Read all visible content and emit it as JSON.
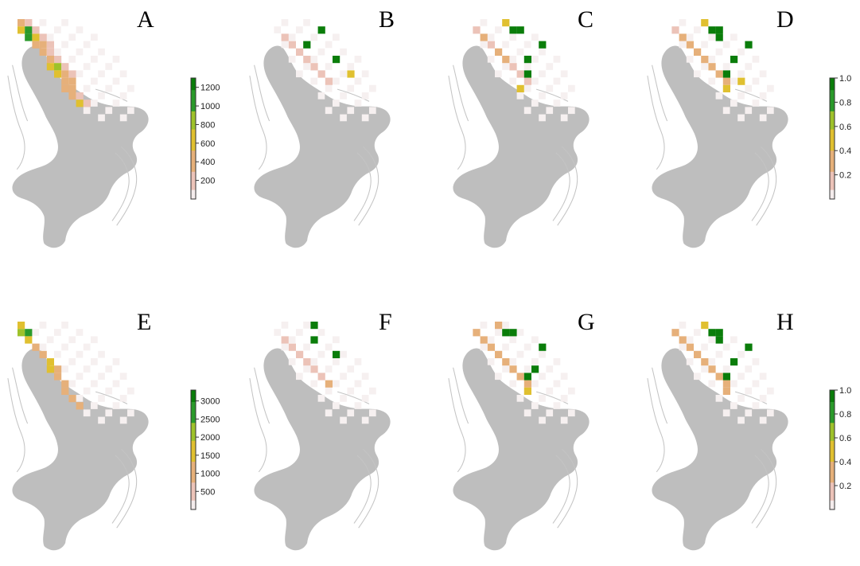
{
  "colors": {
    "land": "#bebebe",
    "contour": "#c4c4c4",
    "ramp": [
      "#f4ecec",
      "#ecc3b8",
      "#e6b07a",
      "#e0c030",
      "#9ec22a",
      "#2a9a2a",
      "#0a7d0a"
    ]
  },
  "legends": [
    {
      "id": "legend-abundance-top",
      "kind": "abundance",
      "ticks": [
        "200",
        "400",
        "600",
        "800",
        "1000",
        "1200"
      ],
      "max": 1300
    },
    {
      "id": "legend-probability-top",
      "kind": "probability",
      "ticks": [
        "0.2",
        "0.4",
        "0.6",
        "0.8",
        "1.0"
      ],
      "max": 1.0
    },
    {
      "id": "legend-abundance-bottom",
      "kind": "abundance",
      "ticks": [
        "500",
        "1000",
        "1500",
        "2000",
        "2500",
        "3000"
      ],
      "max": 3300
    },
    {
      "id": "legend-probability-bottom",
      "kind": "probability",
      "ticks": [
        "0.2",
        "0.4",
        "0.6",
        "0.8",
        "1.0"
      ],
      "max": 1.0
    }
  ],
  "panels": [
    {
      "label": "A",
      "kind": "abundance",
      "grid": [
        [
          0,
          0,
          0.4,
          0
        ],
        [
          0,
          1,
          0.1
        ],
        [
          1,
          0,
          0.5
        ],
        [
          1,
          1,
          0.9
        ],
        [
          1,
          2,
          0.1
        ],
        [
          2,
          1,
          0.75
        ],
        [
          2,
          2,
          0.5
        ],
        [
          2,
          3,
          0.1
        ],
        [
          3,
          2,
          0.4
        ],
        [
          3,
          3,
          0.3
        ],
        [
          3,
          4,
          0.1
        ],
        [
          4,
          3,
          0.3
        ],
        [
          4,
          4,
          0.2
        ],
        [
          5,
          4,
          0.4
        ],
        [
          5,
          5,
          0.2
        ],
        [
          6,
          4,
          0.55
        ],
        [
          6,
          5,
          0.6
        ],
        [
          6,
          6,
          0.2
        ],
        [
          7,
          5,
          0.5
        ],
        [
          7,
          6,
          0.4
        ],
        [
          7,
          7,
          0.2
        ],
        [
          8,
          6,
          0.4
        ],
        [
          8,
          7,
          0.3
        ],
        [
          9,
          6,
          0.3
        ],
        [
          9,
          7,
          0.35
        ],
        [
          10,
          7,
          0.4
        ],
        [
          10,
          8,
          0.2
        ],
        [
          11,
          8,
          0.45
        ],
        [
          11,
          9,
          0.2
        ]
      ]
    },
    {
      "label": "B",
      "kind": "probability",
      "grid": [
        [
          2,
          3,
          0.1
        ],
        [
          3,
          4,
          0.12
        ],
        [
          4,
          5,
          0.15
        ],
        [
          5,
          6,
          0.2
        ],
        [
          6,
          7,
          0.15
        ],
        [
          7,
          8,
          0.12
        ],
        [
          8,
          9,
          0.1
        ],
        [
          3,
          6,
          1.0
        ],
        [
          1,
          8,
          1.0
        ],
        [
          5,
          10,
          1.0
        ],
        [
          7,
          12,
          0.45
        ]
      ]
    },
    {
      "label": "C",
      "kind": "probability",
      "grid": [
        [
          1,
          2,
          0.15
        ],
        [
          2,
          3,
          0.25
        ],
        [
          3,
          4,
          0.2
        ],
        [
          4,
          5,
          0.25
        ],
        [
          5,
          6,
          0.3
        ],
        [
          6,
          7,
          0.2
        ],
        [
          7,
          8,
          0.2
        ],
        [
          8,
          9,
          0.2
        ],
        [
          0,
          6,
          0.5
        ],
        [
          1,
          7,
          1.0
        ],
        [
          1,
          8,
          1.0
        ],
        [
          3,
          11,
          1.0
        ],
        [
          5,
          9,
          1.0
        ],
        [
          7,
          9,
          1.0
        ],
        [
          9,
          8,
          0.45
        ]
      ]
    },
    {
      "label": "D",
      "kind": "probability",
      "grid": [
        [
          1,
          2,
          0.2
        ],
        [
          2,
          3,
          0.3
        ],
        [
          3,
          4,
          0.35
        ],
        [
          4,
          5,
          0.4
        ],
        [
          5,
          6,
          0.35
        ],
        [
          6,
          7,
          0.3
        ],
        [
          7,
          8,
          0.25
        ],
        [
          8,
          9,
          0.25
        ],
        [
          0,
          6,
          0.5
        ],
        [
          1,
          7,
          1.0
        ],
        [
          1,
          8,
          1.0
        ],
        [
          2,
          8,
          1.0
        ],
        [
          3,
          12,
          1.0
        ],
        [
          5,
          10,
          1.0
        ],
        [
          7,
          9,
          1.0
        ],
        [
          8,
          11,
          0.45
        ],
        [
          9,
          9,
          0.45
        ]
      ]
    },
    {
      "label": "E",
      "kind": "abundance",
      "grid": [
        [
          0,
          0,
          0.45
        ],
        [
          1,
          0,
          0.6
        ],
        [
          1,
          1,
          0.9
        ],
        [
          2,
          1,
          0.5
        ],
        [
          3,
          2,
          0.4
        ],
        [
          4,
          3,
          0.3
        ],
        [
          5,
          4,
          0.5
        ],
        [
          6,
          4,
          0.55
        ],
        [
          6,
          5,
          0.4
        ],
        [
          7,
          5,
          0.35
        ],
        [
          8,
          6,
          0.3
        ],
        [
          9,
          6,
          0.25
        ],
        [
          10,
          7,
          0.3
        ],
        [
          11,
          8,
          0.35
        ]
      ]
    },
    {
      "label": "F",
      "kind": "probability",
      "grid": [
        [
          2,
          3,
          0.1
        ],
        [
          3,
          4,
          0.12
        ],
        [
          4,
          5,
          0.12
        ],
        [
          5,
          6,
          0.15
        ],
        [
          6,
          7,
          0.15
        ],
        [
          7,
          8,
          0.1
        ],
        [
          8,
          9,
          0.25
        ],
        [
          0,
          7,
          1.0
        ],
        [
          2,
          7,
          1.0
        ],
        [
          4,
          10,
          1.0
        ]
      ]
    },
    {
      "label": "G",
      "kind": "probability",
      "grid": [
        [
          1,
          2,
          0.25
        ],
        [
          2,
          3,
          0.3
        ],
        [
          3,
          4,
          0.3
        ],
        [
          4,
          5,
          0.35
        ],
        [
          5,
          6,
          0.35
        ],
        [
          6,
          7,
          0.3
        ],
        [
          7,
          8,
          0.25
        ],
        [
          8,
          9,
          0.3
        ],
        [
          0,
          5,
          0.4
        ],
        [
          1,
          6,
          1.0
        ],
        [
          1,
          7,
          1.0
        ],
        [
          3,
          11,
          1.0
        ],
        [
          6,
          10,
          1.0
        ],
        [
          7,
          9,
          1.0
        ],
        [
          9,
          9,
          0.45
        ]
      ]
    },
    {
      "label": "H",
      "kind": "probability",
      "grid": [
        [
          1,
          2,
          0.3
        ],
        [
          2,
          3,
          0.35
        ],
        [
          3,
          4,
          0.4
        ],
        [
          4,
          5,
          0.4
        ],
        [
          5,
          6,
          0.4
        ],
        [
          6,
          7,
          0.35
        ],
        [
          7,
          8,
          0.3
        ],
        [
          8,
          9,
          0.3
        ],
        [
          0,
          6,
          0.45
        ],
        [
          1,
          7,
          1.0
        ],
        [
          1,
          8,
          1.0
        ],
        [
          2,
          8,
          1.0
        ],
        [
          3,
          12,
          1.0
        ],
        [
          5,
          10,
          1.0
        ],
        [
          7,
          9,
          1.0
        ],
        [
          9,
          9,
          0.4
        ]
      ]
    }
  ]
}
